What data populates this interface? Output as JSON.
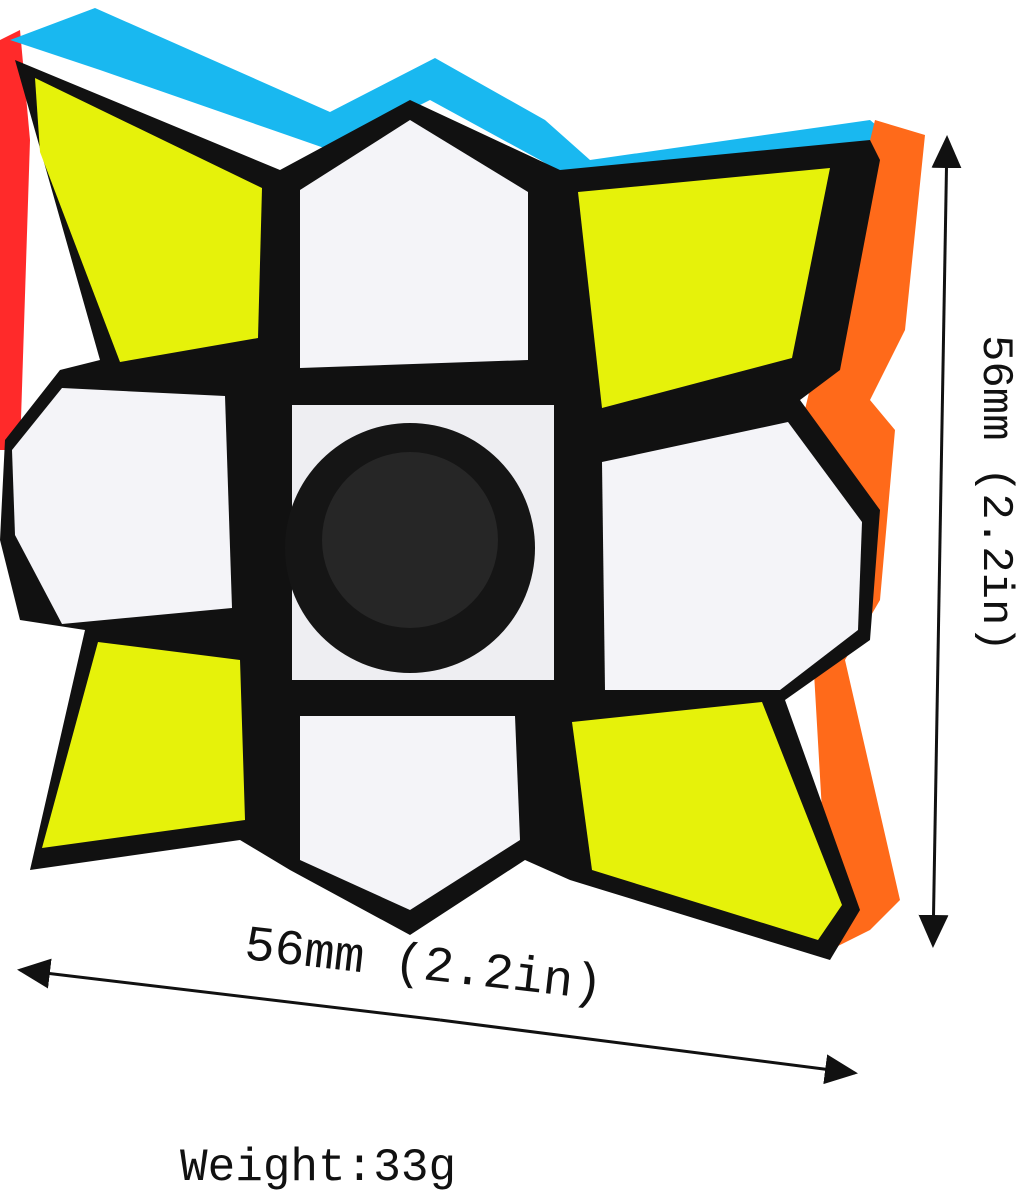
{
  "product": {
    "name_icon": "flip-spinner-cube",
    "colors": {
      "body": "#111111",
      "corner_sticker": "#e6f20a",
      "edge_sticker": "#f4f4f8",
      "top_side": "#19b8f0",
      "right_side": "#ff6a1a",
      "left_side": "#ff2a2a",
      "center_cap": "#151515"
    }
  },
  "dimensions": {
    "width_label": "56mm (2.2in)",
    "height_label": "56mm (2.2in)",
    "weight_label": "Weight:33g"
  }
}
